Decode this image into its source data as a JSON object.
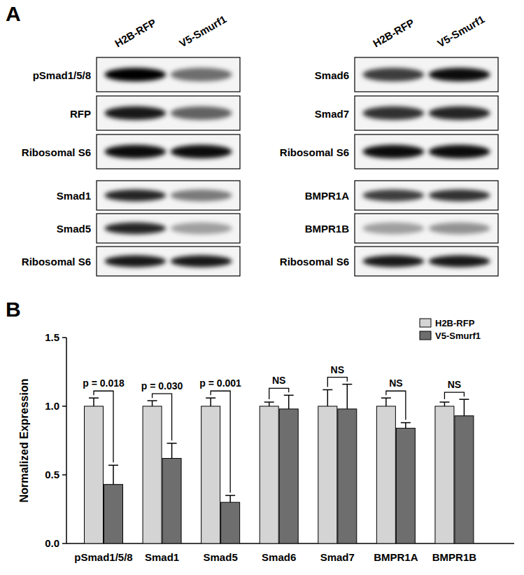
{
  "panel_a": {
    "label": "A",
    "column_groups": [
      [
        "H2B-RFP",
        "V5-Smurf1"
      ],
      [
        "H2B-RFP",
        "V5-Smurf1"
      ]
    ],
    "blots": [
      {
        "rows": [
          "pSmad1/5/8",
          "RFP",
          "Ribosomal S6"
        ]
      },
      {
        "rows": [
          "Smad1",
          "Smad5",
          "Ribosomal S6"
        ]
      },
      {
        "rows": [
          "Smad6",
          "Smad7",
          "Ribosomal S6"
        ]
      },
      {
        "rows": [
          "BMPR1A",
          "BMPR1B",
          "Ribosomal S6"
        ]
      }
    ]
  },
  "chart_data": {
    "type": "bar",
    "panel_label": "B",
    "y_label": "Normalized Expression",
    "categories": [
      "pSmad1/5/8",
      "Smad1",
      "Smad5",
      "Smad6",
      "Smad7",
      "BMPR1A",
      "BMPR1B"
    ],
    "series": [
      {
        "name": "H2B-RFP",
        "color": "#d4d4d4",
        "values": [
          1.0,
          1.0,
          1.0,
          1.0,
          1.0,
          1.0,
          1.0
        ],
        "errors": [
          0.06,
          0.04,
          0.06,
          0.03,
          0.12,
          0.06,
          0.03
        ]
      },
      {
        "name": "V5-Smurf1",
        "color": "#6e6e6e",
        "values": [
          0.43,
          0.62,
          0.3,
          0.98,
          0.98,
          0.84,
          0.93
        ],
        "errors": [
          0.14,
          0.11,
          0.05,
          0.1,
          0.18,
          0.04,
          0.12
        ]
      }
    ],
    "significance": [
      "p = 0.018",
      "p = 0.030",
      "p = 0.001",
      "NS",
      "NS",
      "NS",
      "NS"
    ],
    "ylim": [
      0,
      1.5
    ],
    "yticks": [
      {
        "value": 0,
        "label": "0.0"
      },
      {
        "value": 0.5,
        "label": "0.5"
      },
      {
        "value": 1.0,
        "label": "1.0"
      },
      {
        "value": 1.5,
        "label": "1.5"
      }
    ],
    "legend": "top-right",
    "grid": false
  }
}
